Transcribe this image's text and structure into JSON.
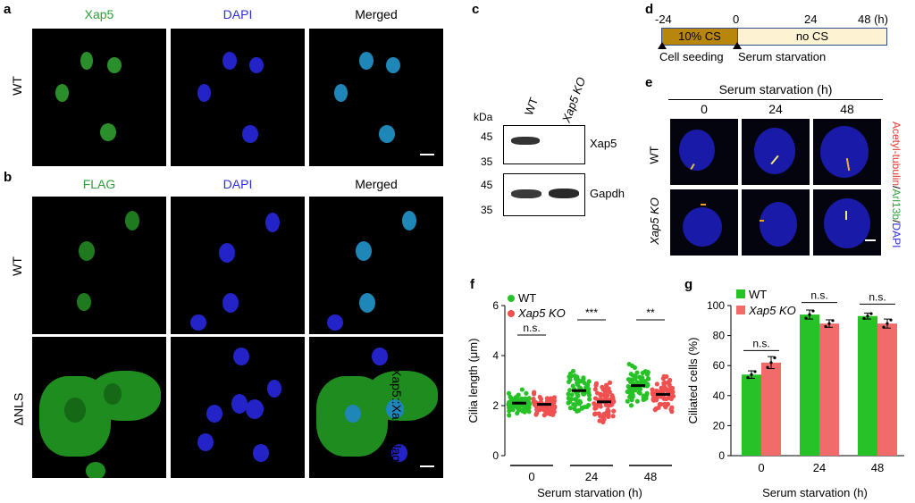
{
  "panel_a": {
    "letter": "a",
    "channels": [
      "Xap5",
      "DAPI",
      "Merged"
    ],
    "row_label": "WT"
  },
  "panel_b": {
    "letter": "b",
    "channels": [
      "FLAG",
      "DAPI",
      "Merged"
    ],
    "row_labels": [
      "WT",
      "ΔNLS"
    ],
    "side_label": "Xap5::Xap5-Flag"
  },
  "panel_c": {
    "letter": "c",
    "kda_label": "kDa",
    "lanes": [
      "WT",
      "Xap5 KO"
    ],
    "blots": [
      {
        "name": "Xap5",
        "markers": [
          "45",
          "35"
        ]
      },
      {
        "name": "Gapdh",
        "markers": [
          "45",
          "35"
        ]
      }
    ]
  },
  "panel_d": {
    "letter": "d",
    "ticks": [
      "-24",
      "0",
      "24",
      "48 (h)"
    ],
    "phase1": "10% CS",
    "phase2": "no CS",
    "event1": "Cell seeding",
    "event2": "Serum starvation",
    "colors": {
      "phase1": "#b8860b",
      "phase2": "#fdf3d2",
      "border": "#2f4f8f"
    }
  },
  "panel_e": {
    "letter": "e",
    "header": "Serum starvation (h)",
    "timepoints": [
      "0",
      "24",
      "48"
    ],
    "row_labels": [
      "WT",
      "Xap5 KO"
    ],
    "side_label_parts": [
      {
        "text": "Acetyl-tubulin",
        "color": "#e53935"
      },
      {
        "text": "/",
        "color": "#000000"
      },
      {
        "text": "Arl13b",
        "color": "#2e9e3a"
      },
      {
        "text": "/",
        "color": "#000000"
      },
      {
        "text": "DAPI",
        "color": "#2c2cd8"
      }
    ]
  },
  "panel_f": {
    "letter": "f",
    "legend": [
      "WT",
      "Xap5 KO"
    ],
    "ylabel": "Cilia length (μm)",
    "xlabel": "Serum starvation (h)",
    "yticks": [
      "0",
      "2",
      "4",
      "6"
    ],
    "groups": [
      "0",
      "24",
      "48"
    ],
    "significance": [
      "n.s.",
      "***",
      "**"
    ],
    "colors": {
      "WT": "#27c227",
      "KO": "#f0504f"
    }
  },
  "panel_g": {
    "letter": "g",
    "legend": [
      "WT",
      "Xap5 KO"
    ],
    "ylabel": "Ciliated cells (%)",
    "xlabel": "Serum starvation (h)",
    "yticks": [
      "0",
      "20",
      "40",
      "60",
      "80",
      "100"
    ],
    "groups": [
      "0",
      "24",
      "48"
    ],
    "significance": [
      "n.s.",
      "n.s.",
      "n.s."
    ],
    "colors": {
      "WT": "#27c227",
      "KO": "#f26b6b"
    }
  },
  "chart_data": [
    {
      "type": "scatter",
      "title": "",
      "xlabel": "Serum starvation (h)",
      "ylabel": "Cilia length (μm)",
      "ylim": [
        0,
        6
      ],
      "categories": [
        "0",
        "24",
        "48"
      ],
      "series": [
        {
          "name": "WT",
          "means": [
            2.1,
            2.6,
            2.8
          ]
        },
        {
          "name": "Xap5 KO",
          "means": [
            2.05,
            2.15,
            2.45
          ]
        }
      ]
    },
    {
      "type": "bar",
      "title": "",
      "xlabel": "Serum starvation (h)",
      "ylabel": "Ciliated cells (%)",
      "ylim": [
        0,
        100
      ],
      "categories": [
        "0",
        "24",
        "48"
      ],
      "series": [
        {
          "name": "WT",
          "values": [
            54,
            94,
            93
          ],
          "errors": [
            2.5,
            3,
            2
          ]
        },
        {
          "name": "Xap5 KO",
          "values": [
            62,
            88,
            88
          ],
          "errors": [
            4,
            2.5,
            3
          ]
        }
      ]
    }
  ]
}
